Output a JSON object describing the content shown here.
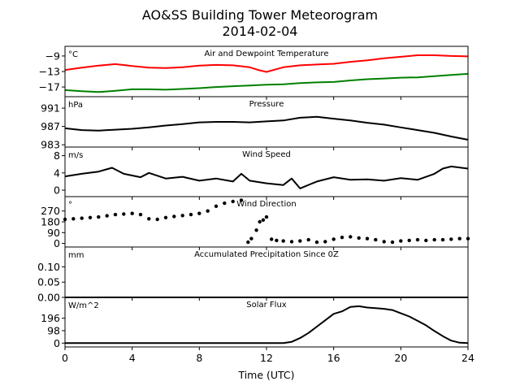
{
  "chart_data": {
    "type": "line",
    "title": "AO&SS Building Tower Meteorogram",
    "subtitle": "2014-02-04",
    "xlabel": "Time (UTC)",
    "xlim": [
      0,
      24
    ],
    "xticks": [
      0,
      4,
      8,
      12,
      16,
      20,
      24
    ],
    "panels": [
      {
        "id": "temperature",
        "title": "Air and Dewpoint Temperature",
        "unit": "°C",
        "ylim": [
          -19.5,
          -6.5
        ],
        "yticks": [
          -9,
          -13,
          -17
        ],
        "series": [
          {
            "color": "#ff0000",
            "style": "line",
            "x": [
              0,
              1,
              2,
              3,
              4,
              5,
              6,
              7,
              8,
              9,
              10,
              11,
              11.5,
              12,
              13,
              14,
              15,
              16,
              17,
              18,
              19,
              20,
              21,
              22,
              23,
              24
            ],
            "y": [
              -12.6,
              -12.0,
              -11.5,
              -11.1,
              -11.6,
              -12.0,
              -12.1,
              -11.9,
              -11.5,
              -11.3,
              -11.4,
              -11.9,
              -12.6,
              -13.1,
              -11.9,
              -11.4,
              -11.2,
              -11.0,
              -10.5,
              -10.1,
              -9.6,
              -9.2,
              -8.8,
              -8.8,
              -9.0,
              -9.1
            ]
          },
          {
            "color": "#008000",
            "style": "line",
            "x": [
              0,
              1,
              2,
              3,
              4,
              5,
              6,
              7,
              8,
              9,
              10,
              11,
              12,
              13,
              14,
              15,
              16,
              17,
              18,
              19,
              20,
              21,
              22,
              23,
              24
            ],
            "y": [
              -17.8,
              -18.1,
              -18.3,
              -18.0,
              -17.6,
              -17.6,
              -17.7,
              -17.5,
              -17.3,
              -17.0,
              -16.8,
              -16.6,
              -16.4,
              -16.3,
              -16.0,
              -15.8,
              -15.7,
              -15.3,
              -15.0,
              -14.8,
              -14.6,
              -14.5,
              -14.2,
              -13.9,
              -13.6
            ]
          }
        ]
      },
      {
        "id": "pressure",
        "title": "Pressure",
        "unit": "hPa",
        "ylim": [
          982.5,
          993.5
        ],
        "yticks": [
          991,
          987,
          983
        ],
        "series": [
          {
            "color": "#000000",
            "style": "line",
            "x": [
              0,
              1,
              2,
              3,
              4,
              5,
              6,
              7,
              8,
              9,
              10,
              11,
              12,
              13,
              14,
              15,
              16,
              17,
              18,
              19,
              20,
              21,
              22,
              23,
              24
            ],
            "y": [
              986.6,
              986.2,
              986.1,
              986.3,
              986.5,
              986.8,
              987.2,
              987.5,
              987.9,
              988.0,
              988.0,
              987.9,
              988.1,
              988.3,
              988.9,
              989.1,
              988.7,
              988.3,
              987.8,
              987.4,
              986.8,
              986.2,
              985.6,
              984.8,
              984.1
            ]
          }
        ]
      },
      {
        "id": "wind_speed",
        "title": "Wind Speed",
        "unit": "m/s",
        "ylim": [
          -1.5,
          10
        ],
        "yticks": [
          8,
          4,
          0
        ],
        "series": [
          {
            "color": "#000000",
            "style": "line",
            "x": [
              0,
              1,
              2,
              2.8,
              3.5,
              4.5,
              5,
              6,
              7,
              8,
              9,
              10,
              10.5,
              11,
              12,
              13,
              13.5,
              14,
              15,
              16,
              17,
              18,
              19,
              20,
              21,
              22,
              22.5,
              23,
              24
            ],
            "y": [
              3.2,
              3.8,
              4.3,
              5.2,
              3.8,
              3.0,
              4.0,
              2.7,
              3.1,
              2.2,
              2.7,
              2.0,
              3.8,
              2.2,
              1.6,
              1.2,
              2.7,
              0.4,
              2.0,
              3.0,
              2.4,
              2.5,
              2.2,
              2.8,
              2.4,
              3.8,
              5.0,
              5.5,
              5.0
            ]
          }
        ]
      },
      {
        "id": "wind_direction",
        "title": "Wind Direction",
        "unit": "°",
        "ylim": [
          -30,
          390
        ],
        "yticks": [
          270,
          180,
          90,
          0
        ],
        "series": [
          {
            "color": "#000000",
            "style": "points",
            "x": [
              0,
              0.5,
              1,
              1.5,
              2,
              2.5,
              3,
              3.5,
              4,
              4.5,
              5,
              5.5,
              6,
              6.5,
              7,
              7.5,
              8,
              8.5,
              9,
              9.5,
              10,
              10.5,
              10.9,
              11.1,
              11.4,
              11.6,
              11.8,
              12,
              12.3,
              12.6,
              13,
              13.5,
              14,
              14.5,
              15,
              15.5,
              16,
              16.5,
              17,
              17.5,
              18,
              18.5,
              19,
              19.5,
              20,
              20.5,
              21,
              21.5,
              22,
              22.5,
              23,
              23.5,
              24
            ],
            "y": [
              200,
              205,
              210,
              215,
              220,
              230,
              240,
              245,
              250,
              240,
              205,
              200,
              215,
              225,
              232,
              240,
              250,
              270,
              310,
              335,
              350,
              360,
              10,
              40,
              110,
              180,
              195,
              220,
              35,
              25,
              20,
              15,
              20,
              30,
              10,
              15,
              35,
              50,
              55,
              45,
              40,
              30,
              15,
              10,
              20,
              25,
              30,
              25,
              30,
              30,
              35,
              40,
              40
            ]
          }
        ]
      },
      {
        "id": "precipitation",
        "title": "Accumulated Precipitation Since 0Z",
        "unit": "mm",
        "ylim": [
          0,
          0.165
        ],
        "yticks": [
          0.1,
          0.05,
          0.0
        ],
        "ytick_labels": [
          "0.10",
          "0.05",
          "0.00"
        ],
        "series": [
          {
            "color": "#000000",
            "style": "line",
            "x": [
              0,
              24
            ],
            "y": [
              0,
              0
            ]
          }
        ]
      },
      {
        "id": "solar_flux",
        "title": "Solar Flux",
        "unit": "W/m^2",
        "ylim": [
          -30,
          360
        ],
        "yticks": [
          196,
          98,
          0
        ],
        "series": [
          {
            "color": "#000000",
            "style": "line",
            "x": [
              0,
              4,
              8,
              12,
              13,
              13.5,
              14,
              14.5,
              15,
              15.5,
              16,
              16.5,
              17,
              17.5,
              18,
              18.5,
              19,
              19.5,
              20,
              20.5,
              21,
              21.5,
              22,
              22.5,
              23,
              23.5,
              24
            ],
            "y": [
              0,
              0,
              0,
              0,
              0,
              10,
              40,
              80,
              130,
              180,
              230,
              250,
              285,
              290,
              280,
              275,
              270,
              260,
              235,
              210,
              175,
              140,
              95,
              55,
              20,
              3,
              0
            ]
          }
        ]
      }
    ]
  }
}
